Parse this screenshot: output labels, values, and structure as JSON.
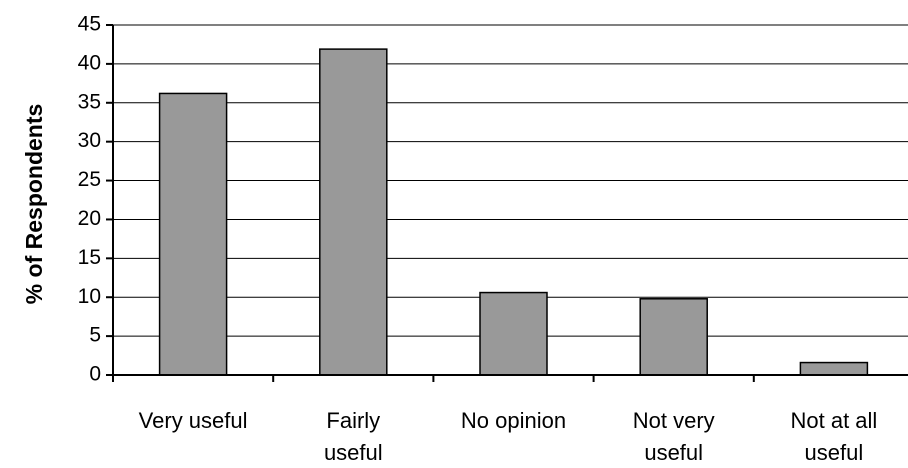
{
  "chart_data": {
    "type": "bar",
    "categories": [
      "Very useful",
      "Fairly useful",
      "No opinion",
      "Not very useful",
      "Not at all useful"
    ],
    "category_lines": [
      [
        "Very useful"
      ],
      [
        "Fairly",
        "useful"
      ],
      [
        "No opinion"
      ],
      [
        "Not very",
        "useful"
      ],
      [
        "Not at all",
        "useful"
      ]
    ],
    "values": [
      36.2,
      41.9,
      10.6,
      9.8,
      1.6
    ],
    "title": "",
    "xlabel": "",
    "ylabel": "% of Respondents",
    "ylim": [
      0,
      45
    ],
    "yticks": [
      0,
      5,
      10,
      15,
      20,
      25,
      30,
      35,
      40,
      45
    ],
    "grid": true,
    "colors": {
      "bar_fill": "#999999",
      "bar_stroke": "#000000",
      "grid": "#000000",
      "axis": "#000000"
    }
  }
}
